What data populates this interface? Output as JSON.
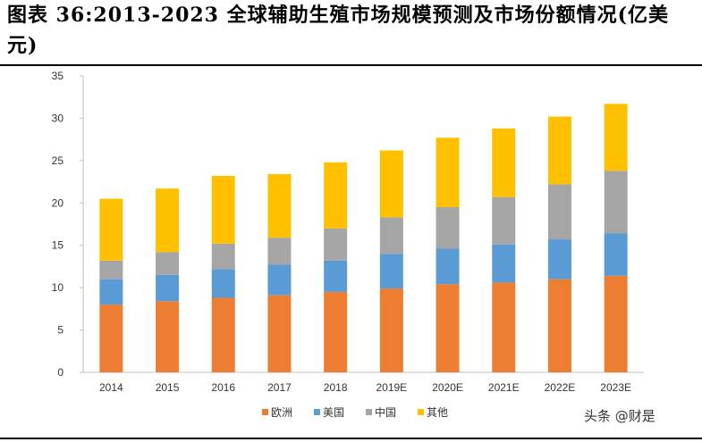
{
  "title": "图表 36:2013-2023 全球辅助生殖市场规模预测及市场份额情况(亿美元)",
  "watermark": "头条 @财是",
  "colors": {
    "欧洲": "#ED7D31",
    "美国": "#5B9BD5",
    "中国": "#A5A5A5",
    "其他": "#FFC000"
  },
  "chart_data": {
    "type": "bar",
    "stacked": true,
    "categories": [
      "2014",
      "2015",
      "2016",
      "2017",
      "2018",
      "2019E",
      "2020E",
      "2021E",
      "2022E",
      "2023E"
    ],
    "series": [
      {
        "name": "欧洲",
        "values": [
          8.0,
          8.4,
          8.8,
          9.1,
          9.5,
          9.9,
          10.4,
          10.6,
          11.0,
          11.4
        ]
      },
      {
        "name": "美国",
        "values": [
          3.0,
          3.1,
          3.4,
          3.6,
          3.7,
          4.1,
          4.2,
          4.5,
          4.7,
          5.0
        ]
      },
      {
        "name": "中国",
        "values": [
          2.2,
          2.7,
          3.0,
          3.2,
          3.8,
          4.3,
          4.9,
          5.6,
          6.5,
          7.4
        ]
      },
      {
        "name": "其他",
        "values": [
          7.3,
          7.5,
          8.0,
          7.5,
          7.8,
          7.9,
          8.2,
          8.1,
          8.0,
          7.9
        ]
      }
    ],
    "ylim": [
      0,
      35
    ],
    "yticks": [
      "0",
      "5",
      "10",
      "15",
      "20",
      "25",
      "30",
      "35"
    ],
    "legend_position": "bottom-center",
    "grid": false
  }
}
